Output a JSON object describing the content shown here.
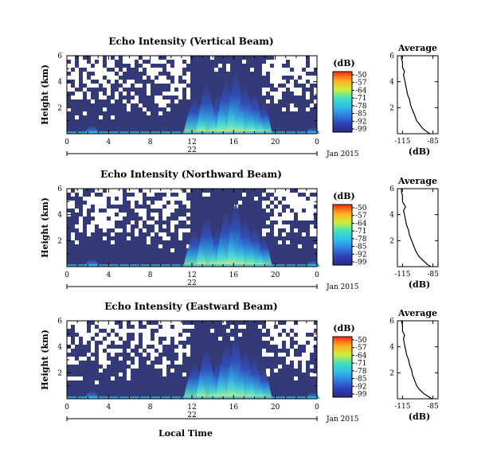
{
  "chart_data": [
    {
      "type": "heatmap",
      "title": "Echo Intensity (Vertical Beam)",
      "ylabel": "Height (km)",
      "xlabel": "",
      "x_ticks": [
        "0",
        "4",
        "8",
        "12",
        "16",
        "20",
        "0"
      ],
      "y_ticks": [
        "6",
        "4",
        "2"
      ],
      "date_label": "22",
      "month_label": "Jan 2015",
      "xlim": [
        0,
        24
      ],
      "ylim": [
        0,
        6
      ],
      "colorbar": {
        "unit": "(dB)",
        "ticks": [
          "-50",
          "-57",
          "-64",
          "-71",
          "-78",
          "-85",
          "-92",
          "-99"
        ],
        "range": [
          -99,
          -50
        ]
      },
      "average_profile": {
        "title": "Average",
        "xlabel": "(dB)",
        "x_ticks": [
          "-115",
          "-85"
        ],
        "y_ticks": [
          "6",
          "4",
          "2"
        ],
        "xlim": [
          -120,
          -80
        ],
        "ylim": [
          0,
          6
        ],
        "points": [
          [
            -88,
            0.0
          ],
          [
            -92,
            0.2
          ],
          [
            -95,
            0.4
          ],
          [
            -98,
            0.7
          ],
          [
            -101,
            1.0
          ],
          [
            -103,
            1.4
          ],
          [
            -105,
            1.8
          ],
          [
            -107,
            2.2
          ],
          [
            -108,
            2.6
          ],
          [
            -110,
            3.0
          ],
          [
            -111,
            3.4
          ],
          [
            -112,
            3.8
          ],
          [
            -113,
            4.2
          ],
          [
            -114,
            4.5
          ],
          [
            -113,
            4.8
          ],
          [
            -115,
            5.1
          ],
          [
            -115,
            5.5
          ],
          [
            -116,
            5.8
          ],
          [
            -116,
            6.0
          ]
        ]
      }
    },
    {
      "type": "heatmap",
      "title": "Echo Intensity (Northward Beam)",
      "ylabel": "Height (km)",
      "xlabel": "",
      "x_ticks": [
        "0",
        "4",
        "8",
        "12",
        "16",
        "20",
        "0"
      ],
      "y_ticks": [
        "6",
        "4",
        "2"
      ],
      "date_label": "22",
      "month_label": "Jan 2015",
      "xlim": [
        0,
        24
      ],
      "ylim": [
        0,
        6
      ],
      "colorbar": {
        "unit": "(dB)",
        "ticks": [
          "-50",
          "-57",
          "-64",
          "-71",
          "-78",
          "-85",
          "-92",
          "-99"
        ],
        "range": [
          -99,
          -50
        ]
      },
      "average_profile": {
        "title": "Average",
        "xlabel": "(dB)",
        "x_ticks": [
          "-115",
          "-85"
        ],
        "y_ticks": [
          "6",
          "4",
          "2"
        ],
        "xlim": [
          -120,
          -80
        ],
        "ylim": [
          0,
          6
        ],
        "points": [
          [
            -87,
            0.0
          ],
          [
            -91,
            0.2
          ],
          [
            -95,
            0.5
          ],
          [
            -99,
            0.8
          ],
          [
            -102,
            1.2
          ],
          [
            -104,
            1.6
          ],
          [
            -106,
            2.0
          ],
          [
            -108,
            2.4
          ],
          [
            -109,
            2.8
          ],
          [
            -111,
            3.2
          ],
          [
            -112,
            3.6
          ],
          [
            -113,
            4.0
          ],
          [
            -114,
            4.3
          ],
          [
            -112,
            4.6
          ],
          [
            -115,
            5.0
          ],
          [
            -115,
            5.4
          ],
          [
            -116,
            5.8
          ],
          [
            -116,
            6.0
          ]
        ]
      }
    },
    {
      "type": "heatmap",
      "title": "Echo Intensity (Eastward Beam)",
      "ylabel": "Height (km)",
      "xlabel": "Local Time",
      "x_ticks": [
        "0",
        "4",
        "8",
        "12",
        "16",
        "20",
        "0"
      ],
      "y_ticks": [
        "6",
        "4",
        "2"
      ],
      "date_label": "22",
      "month_label": "Jan 2015",
      "xlim": [
        0,
        24
      ],
      "ylim": [
        0,
        6
      ],
      "colorbar": {
        "unit": "(dB)",
        "ticks": [
          "-50",
          "-57",
          "-64",
          "-71",
          "-78",
          "-85",
          "-92",
          "-99"
        ],
        "range": [
          -99,
          -50
        ]
      },
      "average_profile": {
        "title": "Average",
        "xlabel": "(dB)",
        "x_ticks": [
          "-115",
          "-85"
        ],
        "y_ticks": [
          "6",
          "4",
          "2"
        ],
        "xlim": [
          -120,
          -80
        ],
        "ylim": [
          0,
          6
        ],
        "points": [
          [
            -86,
            0.0
          ],
          [
            -90,
            0.2
          ],
          [
            -94,
            0.4
          ],
          [
            -98,
            0.7
          ],
          [
            -101,
            1.0
          ],
          [
            -103,
            1.4
          ],
          [
            -105,
            1.8
          ],
          [
            -106,
            2.2
          ],
          [
            -108,
            2.6
          ],
          [
            -109,
            3.0
          ],
          [
            -111,
            3.4
          ],
          [
            -112,
            3.8
          ],
          [
            -113,
            4.2
          ],
          [
            -114,
            4.6
          ],
          [
            -113,
            4.9
          ],
          [
            -115,
            5.2
          ],
          [
            -115,
            5.6
          ],
          [
            -116,
            6.0
          ]
        ]
      }
    }
  ]
}
